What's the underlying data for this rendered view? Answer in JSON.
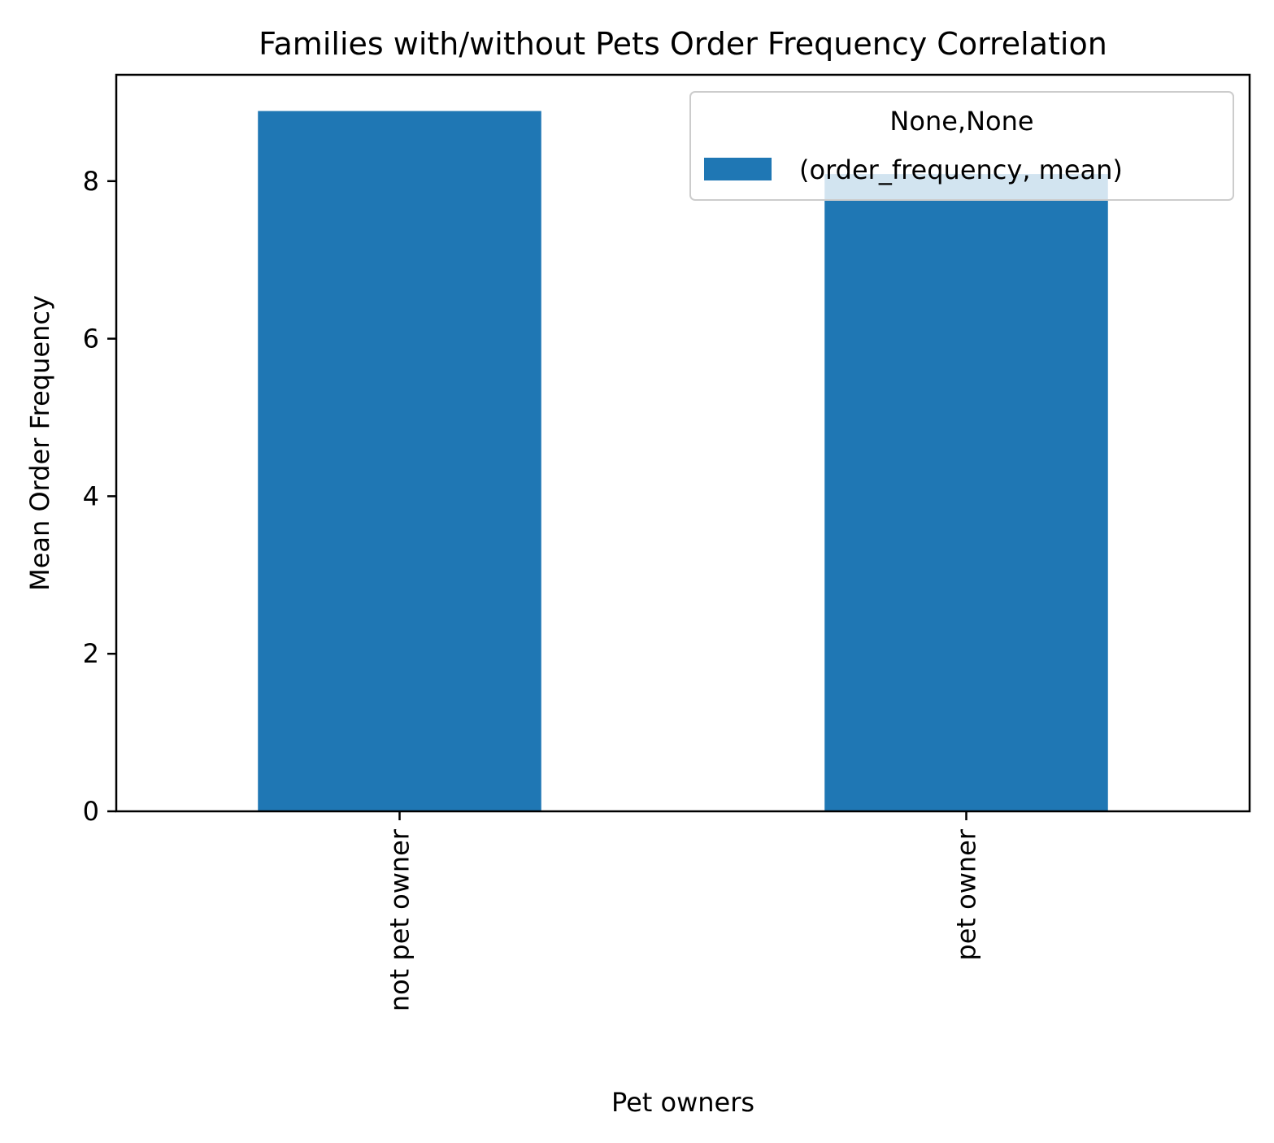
{
  "chart_data": {
    "type": "bar",
    "title": "Families with/without Pets Order Frequency Correlation",
    "xlabel": "Pet owners",
    "ylabel": "Mean Order Frequency",
    "categories": [
      "not pet owner",
      "pet owner"
    ],
    "series": [
      {
        "name": "(order_frequency, mean)",
        "values": [
          8.89,
          8.09
        ],
        "color": "#1f77b4"
      }
    ],
    "ylim": [
      0,
      9.35
    ],
    "yticks": [
      0,
      2,
      4,
      6,
      8
    ],
    "ytick_labels": [
      "0",
      "2",
      "4",
      "6",
      "8"
    ],
    "grid": false,
    "legend": {
      "title": "None,None",
      "placement": "upper right"
    }
  }
}
